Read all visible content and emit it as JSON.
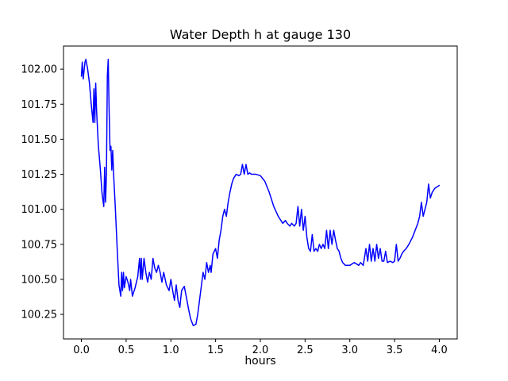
{
  "chart_data": {
    "type": "line",
    "title": "Water Depth h at gauge 130",
    "xlabel": "hours",
    "ylabel": "",
    "line_color": "#0000ff",
    "axes_color": "#000000",
    "grid": false,
    "legend": null,
    "xlim": [
      -0.2,
      4.2
    ],
    "ylim": [
      100.075,
      102.165
    ],
    "xticks": {
      "values": [
        0.0,
        0.5,
        1.0,
        1.5,
        2.0,
        2.5,
        3.0,
        3.5,
        4.0
      ],
      "labels": [
        "0.0",
        "0.5",
        "1.0",
        "1.5",
        "2.0",
        "2.5",
        "3.0",
        "3.5",
        "4.0"
      ]
    },
    "yticks": {
      "values": [
        100.25,
        100.5,
        100.75,
        101.0,
        101.25,
        101.5,
        101.75,
        102.0
      ],
      "labels": [
        "100.25",
        "100.50",
        "100.75",
        "101.00",
        "101.25",
        "101.50",
        "101.75",
        "102.00"
      ]
    },
    "series": [
      {
        "name": "h",
        "points": [
          [
            0.0,
            101.95
          ],
          [
            0.01,
            102.05
          ],
          [
            0.02,
            101.93
          ],
          [
            0.04,
            102.05
          ],
          [
            0.05,
            102.07
          ],
          [
            0.07,
            102.0
          ],
          [
            0.09,
            101.9
          ],
          [
            0.11,
            101.75
          ],
          [
            0.13,
            101.62
          ],
          [
            0.14,
            101.86
          ],
          [
            0.15,
            101.62
          ],
          [
            0.16,
            101.9
          ],
          [
            0.17,
            101.7
          ],
          [
            0.19,
            101.45
          ],
          [
            0.21,
            101.3
          ],
          [
            0.23,
            101.12
          ],
          [
            0.25,
            101.02
          ],
          [
            0.26,
            101.3
          ],
          [
            0.27,
            101.05
          ],
          [
            0.28,
            101.25
          ],
          [
            0.29,
            101.95
          ],
          [
            0.3,
            102.07
          ],
          [
            0.31,
            101.7
          ],
          [
            0.32,
            101.42
          ],
          [
            0.33,
            101.45
          ],
          [
            0.34,
            101.28
          ],
          [
            0.35,
            101.42
          ],
          [
            0.36,
            101.25
          ],
          [
            0.38,
            101.0
          ],
          [
            0.4,
            100.72
          ],
          [
            0.42,
            100.46
          ],
          [
            0.44,
            100.38
          ],
          [
            0.45,
            100.55
          ],
          [
            0.46,
            100.42
          ],
          [
            0.47,
            100.55
          ],
          [
            0.48,
            100.44
          ],
          [
            0.5,
            100.52
          ],
          [
            0.52,
            100.48
          ],
          [
            0.54,
            100.42
          ],
          [
            0.55,
            100.5
          ],
          [
            0.57,
            100.38
          ],
          [
            0.6,
            100.44
          ],
          [
            0.63,
            100.52
          ],
          [
            0.65,
            100.65
          ],
          [
            0.66,
            100.5
          ],
          [
            0.67,
            100.65
          ],
          [
            0.68,
            100.5
          ],
          [
            0.7,
            100.65
          ],
          [
            0.72,
            100.55
          ],
          [
            0.74,
            100.48
          ],
          [
            0.76,
            100.55
          ],
          [
            0.78,
            100.5
          ],
          [
            0.8,
            100.65
          ],
          [
            0.82,
            100.58
          ],
          [
            0.84,
            100.55
          ],
          [
            0.86,
            100.6
          ],
          [
            0.88,
            100.55
          ],
          [
            0.9,
            100.48
          ],
          [
            0.92,
            100.55
          ],
          [
            0.95,
            100.46
          ],
          [
            0.98,
            100.42
          ],
          [
            1.0,
            100.5
          ],
          [
            1.02,
            100.42
          ],
          [
            1.04,
            100.35
          ],
          [
            1.06,
            100.46
          ],
          [
            1.08,
            100.35
          ],
          [
            1.1,
            100.3
          ],
          [
            1.12,
            100.42
          ],
          [
            1.15,
            100.45
          ],
          [
            1.18,
            100.35
          ],
          [
            1.2,
            100.28
          ],
          [
            1.22,
            100.22
          ],
          [
            1.25,
            100.17
          ],
          [
            1.28,
            100.18
          ],
          [
            1.3,
            100.25
          ],
          [
            1.32,
            100.35
          ],
          [
            1.34,
            100.45
          ],
          [
            1.36,
            100.55
          ],
          [
            1.38,
            100.5
          ],
          [
            1.4,
            100.62
          ],
          [
            1.42,
            100.55
          ],
          [
            1.44,
            100.6
          ],
          [
            1.45,
            100.55
          ],
          [
            1.47,
            100.68
          ],
          [
            1.5,
            100.72
          ],
          [
            1.52,
            100.65
          ],
          [
            1.54,
            100.78
          ],
          [
            1.56,
            100.85
          ],
          [
            1.58,
            100.95
          ],
          [
            1.6,
            101.0
          ],
          [
            1.62,
            100.95
          ],
          [
            1.64,
            101.05
          ],
          [
            1.66,
            101.12
          ],
          [
            1.68,
            101.18
          ],
          [
            1.7,
            101.22
          ],
          [
            1.73,
            101.25
          ],
          [
            1.76,
            101.24
          ],
          [
            1.78,
            101.25
          ],
          [
            1.8,
            101.32
          ],
          [
            1.82,
            101.25
          ],
          [
            1.84,
            101.32
          ],
          [
            1.86,
            101.25
          ],
          [
            1.88,
            101.26
          ],
          [
            1.9,
            101.25
          ],
          [
            1.95,
            101.25
          ],
          [
            2.0,
            101.24
          ],
          [
            2.05,
            101.2
          ],
          [
            2.1,
            101.12
          ],
          [
            2.15,
            101.02
          ],
          [
            2.2,
            100.95
          ],
          [
            2.25,
            100.9
          ],
          [
            2.28,
            100.92
          ],
          [
            2.3,
            100.9
          ],
          [
            2.33,
            100.88
          ],
          [
            2.35,
            100.9
          ],
          [
            2.38,
            100.88
          ],
          [
            2.4,
            100.9
          ],
          [
            2.42,
            101.02
          ],
          [
            2.44,
            100.88
          ],
          [
            2.46,
            101.0
          ],
          [
            2.48,
            100.85
          ],
          [
            2.5,
            100.95
          ],
          [
            2.52,
            100.8
          ],
          [
            2.54,
            100.72
          ],
          [
            2.56,
            100.7
          ],
          [
            2.58,
            100.82
          ],
          [
            2.6,
            100.7
          ],
          [
            2.62,
            100.72
          ],
          [
            2.64,
            100.7
          ],
          [
            2.66,
            100.75
          ],
          [
            2.68,
            100.72
          ],
          [
            2.7,
            100.75
          ],
          [
            2.72,
            100.72
          ],
          [
            2.74,
            100.85
          ],
          [
            2.76,
            100.72
          ],
          [
            2.78,
            100.85
          ],
          [
            2.8,
            100.75
          ],
          [
            2.82,
            100.85
          ],
          [
            2.84,
            100.78
          ],
          [
            2.86,
            100.72
          ],
          [
            2.88,
            100.7
          ],
          [
            2.9,
            100.65
          ],
          [
            2.92,
            100.62
          ],
          [
            2.95,
            100.6
          ],
          [
            3.0,
            100.6
          ],
          [
            3.05,
            100.62
          ],
          [
            3.1,
            100.6
          ],
          [
            3.12,
            100.62
          ],
          [
            3.15,
            100.6
          ],
          [
            3.18,
            100.72
          ],
          [
            3.2,
            100.63
          ],
          [
            3.22,
            100.75
          ],
          [
            3.24,
            100.63
          ],
          [
            3.26,
            100.72
          ],
          [
            3.28,
            100.63
          ],
          [
            3.3,
            100.75
          ],
          [
            3.32,
            100.65
          ],
          [
            3.34,
            100.72
          ],
          [
            3.36,
            100.63
          ],
          [
            3.38,
            100.63
          ],
          [
            3.4,
            100.7
          ],
          [
            3.42,
            100.62
          ],
          [
            3.45,
            100.63
          ],
          [
            3.48,
            100.62
          ],
          [
            3.5,
            100.63
          ],
          [
            3.52,
            100.75
          ],
          [
            3.54,
            100.63
          ],
          [
            3.56,
            100.65
          ],
          [
            3.58,
            100.68
          ],
          [
            3.6,
            100.7
          ],
          [
            3.63,
            100.72
          ],
          [
            3.66,
            100.75
          ],
          [
            3.7,
            100.8
          ],
          [
            3.73,
            100.85
          ],
          [
            3.76,
            100.9
          ],
          [
            3.78,
            100.95
          ],
          [
            3.8,
            101.05
          ],
          [
            3.82,
            100.95
          ],
          [
            3.84,
            101.0
          ],
          [
            3.86,
            101.05
          ],
          [
            3.88,
            101.18
          ],
          [
            3.9,
            101.08
          ],
          [
            3.92,
            101.12
          ],
          [
            3.95,
            101.15
          ],
          [
            4.0,
            101.17
          ]
        ]
      }
    ]
  }
}
